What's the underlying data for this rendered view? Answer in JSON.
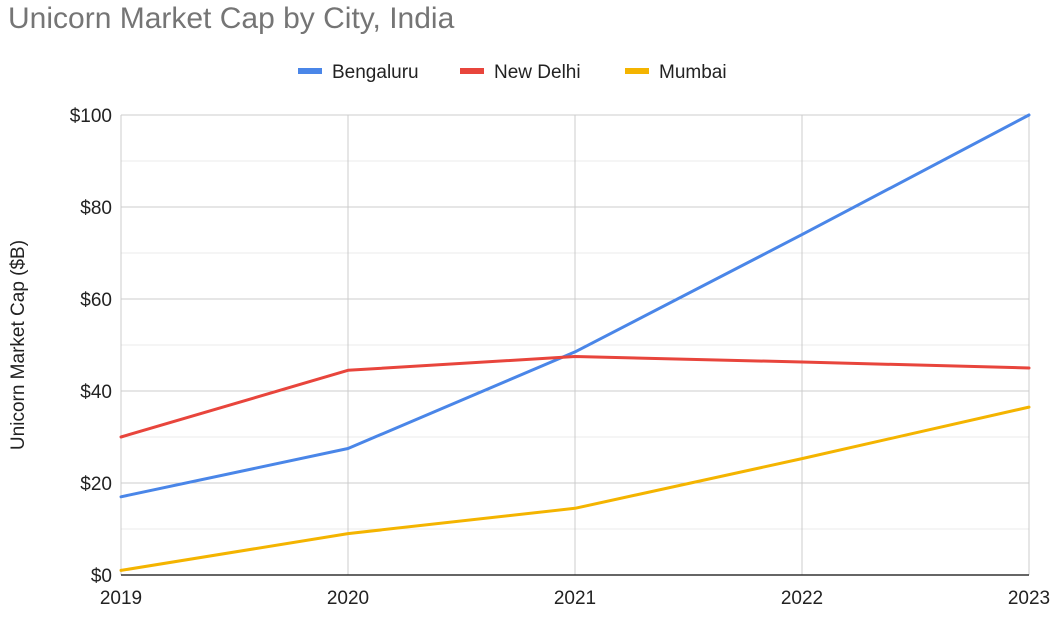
{
  "chart_data": {
    "type": "line",
    "title": "Unicorn Market Cap by City, India",
    "xlabel": "",
    "ylabel": "Unicorn Market Cap ($B)",
    "x": [
      "2019",
      "2020",
      "2021",
      "2022",
      "2023"
    ],
    "ylim": [
      0,
      100
    ],
    "y_ticks": [
      "$0",
      "$20",
      "$40",
      "$60",
      "$80",
      "$100"
    ],
    "y_tick_values": [
      0,
      20,
      40,
      60,
      80,
      100
    ],
    "grid": true,
    "legend_position": "top",
    "series": [
      {
        "name": "Bengaluru",
        "color": "#4a86e8",
        "values": [
          17,
          27.5,
          48.5,
          74,
          100
        ]
      },
      {
        "name": "New Delhi",
        "color": "#e8453c",
        "values": [
          30,
          44.5,
          47.5,
          46.3,
          45
        ]
      },
      {
        "name": "Mumbai",
        "color": "#f4b400",
        "values": [
          1,
          9,
          14.5,
          25.3,
          36.5
        ]
      }
    ]
  }
}
